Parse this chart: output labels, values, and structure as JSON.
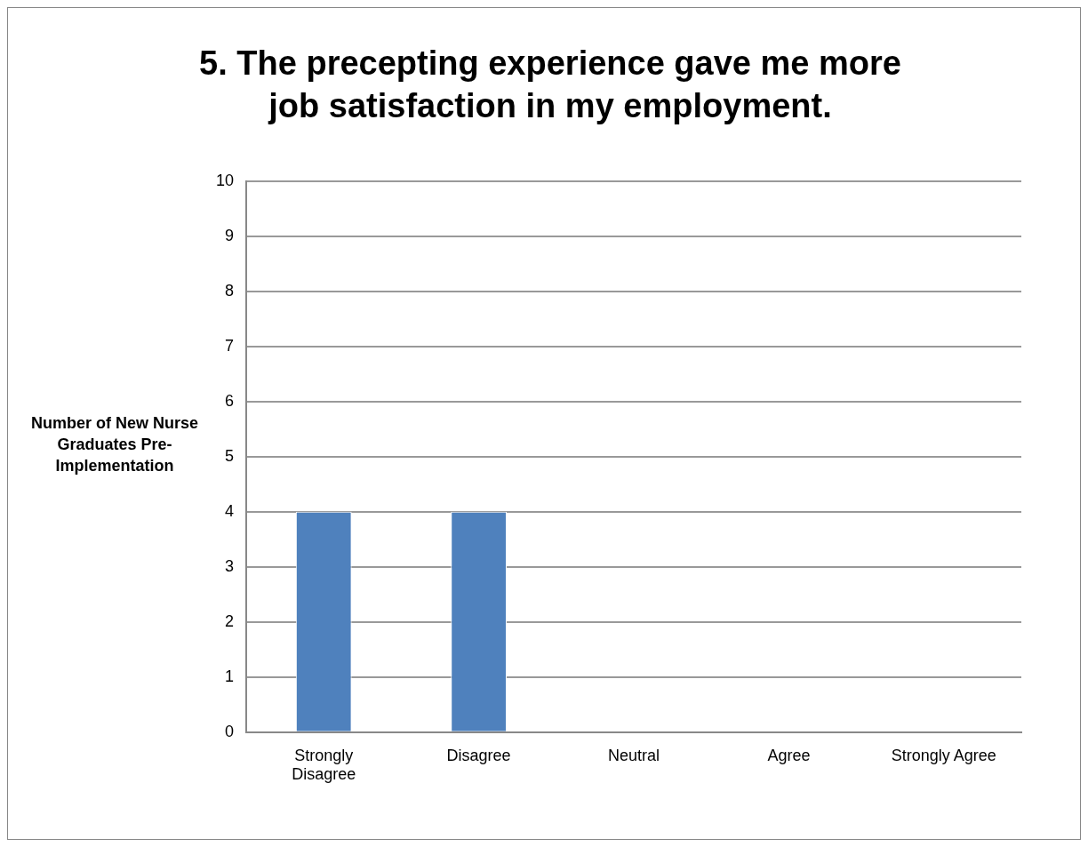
{
  "chart_data": {
    "type": "bar",
    "title": "5. The precepting experience gave me more job satisfaction in my employment.",
    "ylabel": "Number of New Nurse Graduates Pre-Implementation",
    "categories": [
      "Strongly Disagree",
      "Disagree",
      "Neutral",
      "Agree",
      "Strongly Agree"
    ],
    "series": [
      {
        "color": "#4f81bd",
        "values": [
          4,
          4,
          0,
          0,
          0
        ]
      }
    ],
    "ylim": [
      0,
      10
    ],
    "yticks": [
      0,
      1,
      2,
      3,
      4,
      5,
      6,
      7,
      8,
      9,
      10
    ],
    "grid": "y",
    "legend": false
  }
}
